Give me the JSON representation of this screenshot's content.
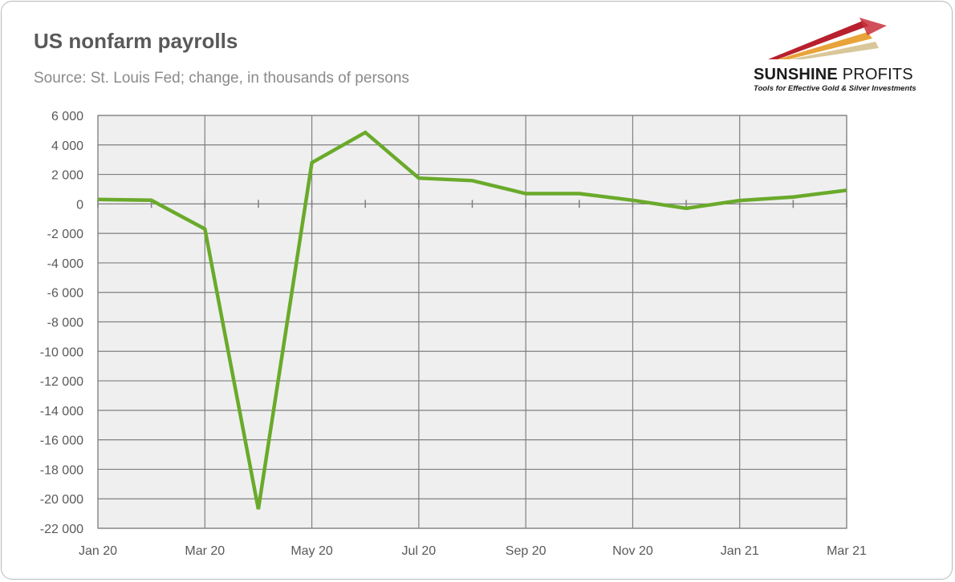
{
  "header": {
    "title": "US nonfarm payrolls",
    "subtitle": "Source: St. Louis Fed; change, in thousands of persons"
  },
  "logo": {
    "name_bold": "SUNSHINE",
    "name_light": "PROFITS",
    "tagline": "Tools for Effective Gold & Silver Investments",
    "colors": [
      "#b8202e",
      "#e8a33a",
      "#d9c79a"
    ]
  },
  "chart_data": {
    "type": "line",
    "title": "US nonfarm payrolls",
    "subtitle": "Source: St. Louis Fed; change, in thousands of persons",
    "x": [
      "Jan 20",
      "Feb 20",
      "Mar 20",
      "Apr 20",
      "May 20",
      "Jun 20",
      "Jul 20",
      "Aug 20",
      "Sep 20",
      "Oct 20",
      "Nov 20",
      "Dec 20",
      "Jan 21",
      "Feb 21",
      "Mar 21"
    ],
    "x_tick_labels": [
      "Jan 20",
      "Mar 20",
      "May 20",
      "Jul 20",
      "Sep 20",
      "Nov 20",
      "Jan 21",
      "Mar 21"
    ],
    "series": [
      {
        "color": "#6aaa2b",
        "values": [
          300,
          250,
          -1700,
          -20700,
          2800,
          4850,
          1750,
          1580,
          700,
          700,
          250,
          -300,
          230,
          470,
          920
        ]
      }
    ],
    "ylim": [
      -22000,
      6000
    ],
    "yticks": [
      6000,
      4000,
      2000,
      0,
      -2000,
      -4000,
      -6000,
      -8000,
      -10000,
      -12000,
      -14000,
      -16000,
      -18000,
      -20000,
      -22000
    ],
    "ytick_labels": [
      "6 000",
      "4 000",
      "2 000",
      "0",
      "-2 000",
      "-4 000",
      "-6 000",
      "-8 000",
      "-10 000",
      "-12 000",
      "-14 000",
      "-16 000",
      "-18 000",
      "-20 000",
      "-22 000"
    ],
    "grid": true,
    "plot_background": "#efefef",
    "gridline_color": "#7f7f7f"
  }
}
